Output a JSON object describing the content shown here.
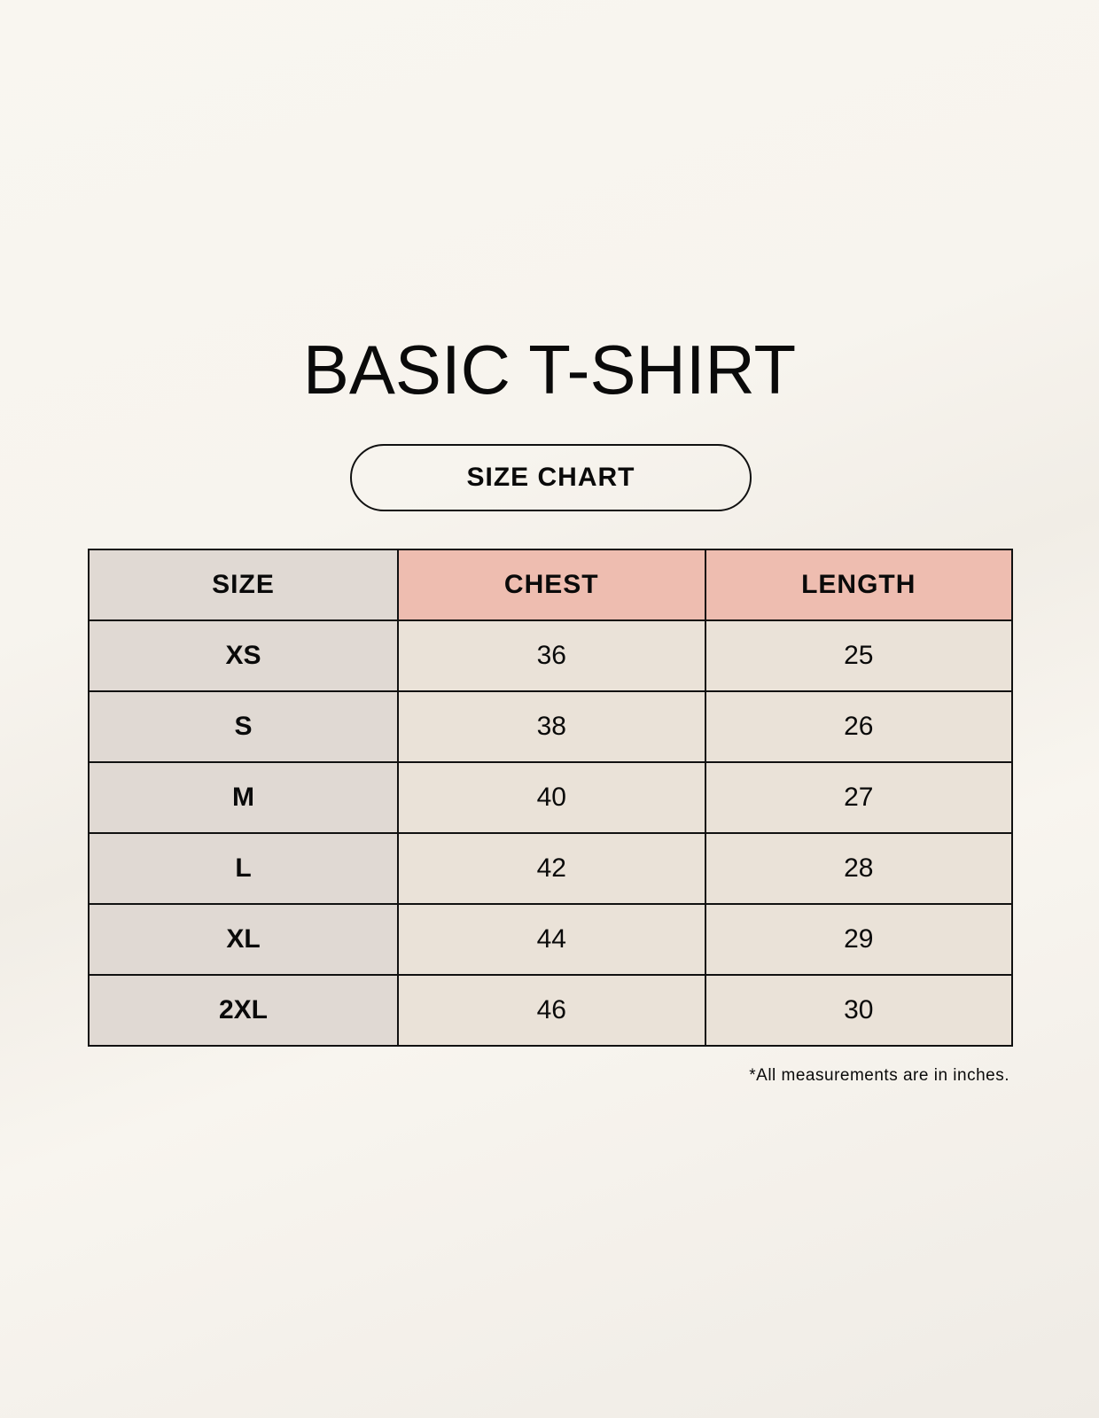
{
  "title": "BASIC T-SHIRT",
  "subtitle": "SIZE CHART",
  "table": {
    "headers": [
      "SIZE",
      "CHEST",
      "LENGTH"
    ],
    "rows": [
      [
        "XS",
        "36",
        "25"
      ],
      [
        "S",
        "38",
        "26"
      ],
      [
        "M",
        "40",
        "27"
      ],
      [
        "L",
        "42",
        "28"
      ],
      [
        "XL",
        "44",
        "29"
      ],
      [
        "2XL",
        "46",
        "30"
      ]
    ]
  },
  "footnote": "*All measurements are in inches.",
  "colors": {
    "size_column": "#e0d9d3",
    "header_accent": "#eebdb0",
    "value_cells": "#eae2d8"
  }
}
